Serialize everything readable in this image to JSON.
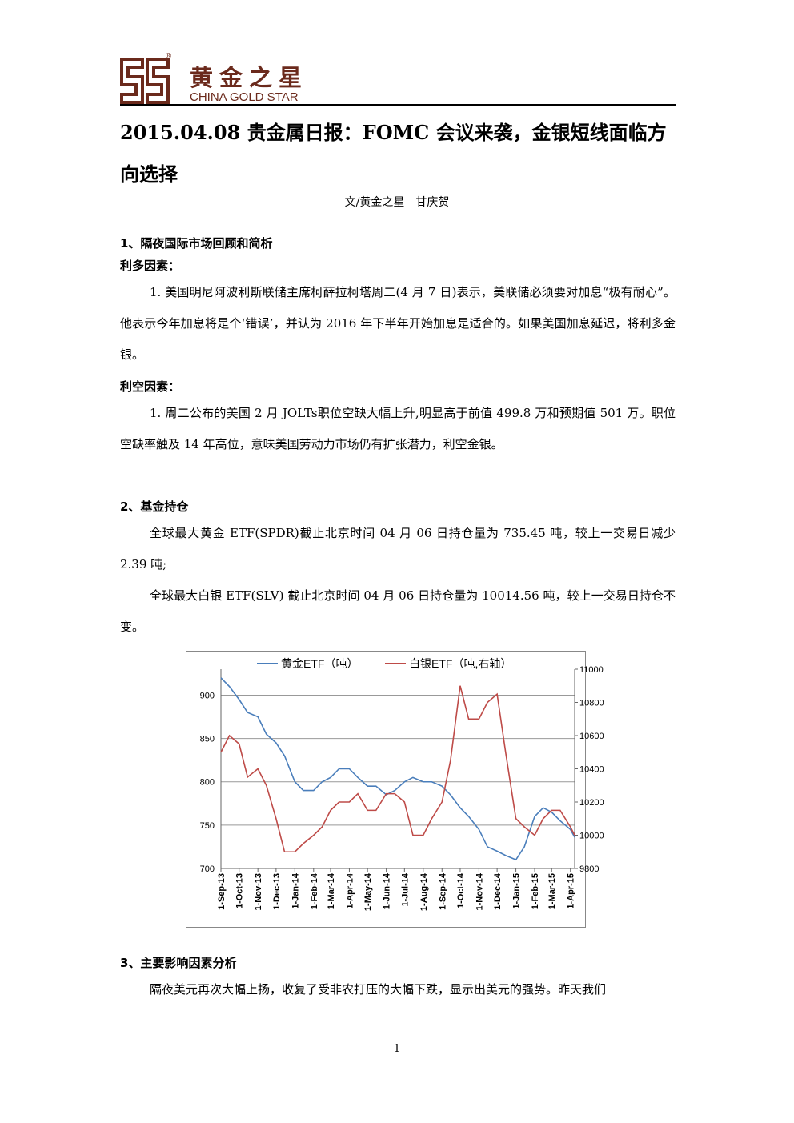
{
  "header": {
    "logo_cn": "黄金之星",
    "logo_en": "CHINA GOLD STAR",
    "logo_mark": "®"
  },
  "title": "2015.04.08 贵金属日报：FOMC 会议来袭，金银短线面临方向选择",
  "byline": "文/黄金之星　甘庆贺",
  "sections": [
    {
      "heading": "1、隔夜国际市场回顾和简析",
      "blocks": [
        {
          "subheading": "利多因素：",
          "paragraphs": [
            "1. 美国明尼阿波利斯联储主席柯薛拉柯塔周二(4 月 7 日)表示，美联储必须要对加息“极有耐心”。他表示今年加息将是个‘错误’，并认为 2016 年下半年开始加息是适合的。如果美国加息延迟，将利多金银。"
          ]
        },
        {
          "subheading": "利空因素：",
          "paragraphs": [
            "1. 周二公布的美国 2 月 JOLTs职位空缺大幅上升,明显高于前值 499.8 万和预期值 501 万。职位空缺率触及 14 年高位，意味美国劳动力市场仍有扩张潜力，利空金银。"
          ]
        }
      ]
    },
    {
      "heading": "2、基金持仓",
      "paragraphs": [
        "全球最大黄金 ETF(SPDR)截止北京时间 04 月 06 日持仓量为 735.45 吨，较上一交易日减少 2.39 吨;",
        "全球最大白银 ETF(SLV) 截止北京时间 04 月 06 日持仓量为 10014.56 吨，较上一交易日持仓不变。"
      ]
    },
    {
      "heading": "3、主要影响因素分析",
      "paragraphs": [
        "隔夜美元再次大幅上扬，收复了受非农打压的大幅下跌，显示出美元的强势。昨天我们"
      ]
    }
  ],
  "page_number": "1",
  "chart_data": {
    "type": "line",
    "x": [
      "2013-09-01",
      "2013-09-15",
      "2013-10-01",
      "2013-10-15",
      "2013-11-01",
      "2013-11-15",
      "2013-12-01",
      "2013-12-15",
      "2014-01-01",
      "2014-01-15",
      "2014-02-01",
      "2014-02-15",
      "2014-03-01",
      "2014-03-15",
      "2014-04-01",
      "2014-04-15",
      "2014-05-01",
      "2014-05-15",
      "2014-06-01",
      "2014-06-15",
      "2014-07-01",
      "2014-07-15",
      "2014-08-01",
      "2014-08-15",
      "2014-09-01",
      "2014-09-15",
      "2014-10-01",
      "2014-10-15",
      "2014-11-01",
      "2014-11-15",
      "2014-12-01",
      "2014-12-15",
      "2015-01-01",
      "2015-01-15",
      "2015-02-01",
      "2015-02-15",
      "2015-03-01",
      "2015-03-15",
      "2015-04-01",
      "2015-04-08"
    ],
    "series": [
      {
        "name": "黄金ETF（吨）",
        "color": "#4a7ebb",
        "axis": "y",
        "values": [
          920,
          910,
          895,
          880,
          875,
          855,
          845,
          830,
          800,
          790,
          790,
          800,
          805,
          815,
          815,
          805,
          795,
          795,
          785,
          790,
          800,
          805,
          800,
          800,
          795,
          785,
          770,
          760,
          745,
          725,
          720,
          715,
          710,
          725,
          760,
          770,
          765,
          755,
          745,
          736
        ]
      },
      {
        "name": "白银ETF（吨,右轴）",
        "color": "#be4b48",
        "axis": "y2",
        "values": [
          10500,
          10600,
          10550,
          10350,
          10400,
          10300,
          10100,
          9900,
          9900,
          9950,
          10000,
          10050,
          10150,
          10200,
          10200,
          10250,
          10150,
          10150,
          10250,
          10250,
          10200,
          10000,
          10000,
          10100,
          10200,
          10450,
          10900,
          10700,
          10700,
          10800,
          10850,
          10500,
          10100,
          10050,
          10000,
          10100,
          10150,
          10150,
          10050,
          10000
        ]
      }
    ],
    "ylim": [
      700,
      930
    ],
    "yticks": [
      700,
      750,
      800,
      850,
      900
    ],
    "y2lim": [
      9800,
      11000
    ],
    "y2ticks": [
      9800,
      10000,
      10200,
      10400,
      10600,
      10800,
      11000
    ],
    "xticks": [
      {
        "value": "2013-09-01",
        "label": "1-Sep-13"
      },
      {
        "value": "2013-10-01",
        "label": "1-Oct-13"
      },
      {
        "value": "2013-11-01",
        "label": "1-Nov-13"
      },
      {
        "value": "2013-12-01",
        "label": "1-Dec-13"
      },
      {
        "value": "2014-01-01",
        "label": "1-Jan-14"
      },
      {
        "value": "2014-02-01",
        "label": "1-Feb-14"
      },
      {
        "value": "2014-03-01",
        "label": "1-Mar-14"
      },
      {
        "value": "2014-04-01",
        "label": "1-Apr-14"
      },
      {
        "value": "2014-05-01",
        "label": "1-May-14"
      },
      {
        "value": "2014-06-01",
        "label": "1-Jun-14"
      },
      {
        "value": "2014-07-01",
        "label": "1-Jul-14"
      },
      {
        "value": "2014-08-01",
        "label": "1-Aug-14"
      },
      {
        "value": "2014-09-01",
        "label": "1-Sep-14"
      },
      {
        "value": "2014-10-01",
        "label": "1-Oct-14"
      },
      {
        "value": "2014-11-01",
        "label": "1-Nov-14"
      },
      {
        "value": "2014-12-01",
        "label": "1-Dec-14"
      },
      {
        "value": "2015-01-01",
        "label": "1-Jan-15"
      },
      {
        "value": "2015-02-01",
        "label": "1-Feb-15"
      },
      {
        "value": "2015-03-01",
        "label": "1-Mar-15"
      },
      {
        "value": "2015-04-01",
        "label": "1-Apr-15"
      }
    ],
    "grid": true,
    "legend": "upper center"
  }
}
